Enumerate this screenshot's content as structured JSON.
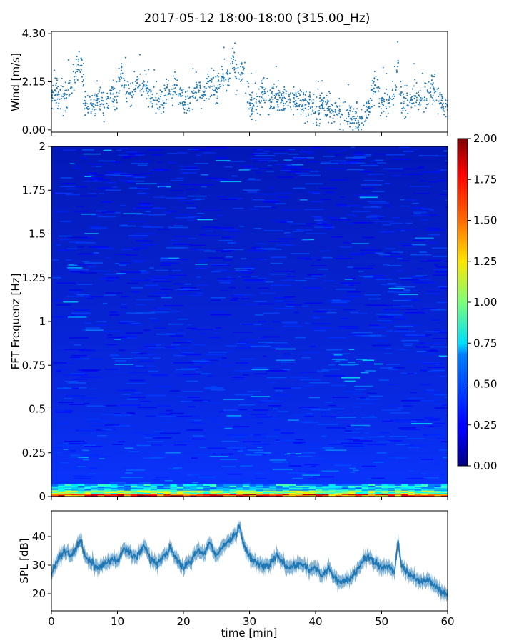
{
  "chart_data": [
    {
      "type": "scatter",
      "ylabel": "Wind [m/s]",
      "xlim": [
        0,
        60
      ],
      "ylim": [
        -0.1,
        4.4
      ],
      "yticks": [
        "0.00",
        "2.15",
        "4.30"
      ],
      "color": "#1f77b4",
      "x": [
        0,
        1,
        2,
        3,
        4,
        4.5,
        5,
        6,
        7,
        8,
        9,
        10,
        10.5,
        11,
        12,
        13,
        14,
        15,
        16,
        17,
        17.5,
        18,
        19,
        20,
        21,
        22,
        23,
        24,
        25,
        26,
        27,
        27.5,
        28,
        29,
        30,
        31,
        32,
        33,
        34,
        35,
        36,
        37,
        38,
        39,
        40,
        41,
        42,
        43,
        44,
        45,
        46,
        47,
        48,
        49,
        50,
        51,
        52,
        52.5,
        53,
        54,
        55,
        56,
        57,
        58,
        59,
        60
      ],
      "y": [
        1.5,
        1.6,
        1.4,
        1.9,
        2.7,
        3.2,
        1.3,
        1.2,
        1.4,
        1.0,
        1.6,
        1.5,
        2.5,
        1.9,
        1.6,
        2.1,
        2.0,
        1.4,
        1.3,
        1.2,
        1.9,
        1.6,
        2.0,
        1.1,
        1.2,
        1.9,
        1.5,
        2.2,
        1.7,
        2.5,
        2.3,
        3.3,
        2.3,
        2.8,
        1.2,
        0.9,
        1.7,
        1.3,
        1.6,
        1.3,
        1.5,
        1.3,
        1.1,
        1.2,
        0.8,
        1.1,
        0.9,
        0.9,
        0.7,
        0.6,
        0.5,
        0.5,
        1.0,
        2.0,
        1.3,
        1.2,
        1.5,
        3.0,
        1.2,
        1.1,
        1.4,
        1.3,
        1.7,
        1.8,
        1.2,
        0.9
      ]
    },
    {
      "type": "heatmap",
      "ylabel": "FFT Frequenz [Hz]",
      "xlim": [
        0,
        60
      ],
      "ylim": [
        0,
        2
      ],
      "yticks": [
        "0",
        "0.25",
        "0.5",
        "0.75",
        "1",
        "1.25",
        "1.5",
        "1.75",
        "2"
      ],
      "colormap": "jet",
      "colorbar": {
        "range": [
          0,
          2
        ],
        "ticks": [
          "0.00",
          "0.25",
          "0.50",
          "0.75",
          "1.00",
          "1.25",
          "1.50",
          "1.75",
          "2.00"
        ]
      }
    },
    {
      "type": "line",
      "ylabel": "SPL [dB]",
      "xlabel": "time [min]",
      "xlim": [
        0,
        60
      ],
      "ylim": [
        14,
        49
      ],
      "yticks": [
        "20",
        "30",
        "40"
      ],
      "xticks": [
        "0",
        "10",
        "20",
        "30",
        "40",
        "50",
        "60"
      ],
      "color": "#1f77b4",
      "x": [
        0,
        1,
        2,
        3,
        4,
        4.5,
        5,
        6,
        7,
        8,
        9,
        10,
        11,
        12,
        13,
        14,
        15,
        16,
        17,
        18,
        19,
        20,
        21,
        22,
        23,
        24,
        25,
        26,
        27,
        28,
        28.5,
        29,
        30,
        31,
        32,
        33,
        34,
        35,
        36,
        37,
        38,
        39,
        40,
        41,
        42,
        43,
        44,
        45,
        46,
        47,
        48,
        49,
        50,
        51,
        52,
        52.5,
        53,
        54,
        55,
        56,
        57,
        58,
        59,
        60
      ],
      "y": [
        27,
        32,
        35,
        33,
        37,
        39,
        33,
        31,
        29,
        30,
        32,
        31,
        36,
        34,
        33,
        37,
        32,
        30,
        33,
        36,
        32,
        29,
        31,
        35,
        34,
        38,
        33,
        37,
        38,
        41,
        44,
        38,
        33,
        31,
        30,
        30,
        34,
        31,
        29,
        30,
        31,
        28,
        29,
        26,
        29,
        25,
        24,
        25,
        27,
        31,
        33,
        31,
        29,
        30,
        28,
        39,
        30,
        27,
        26,
        24,
        25,
        23,
        21,
        19
      ]
    }
  ],
  "title": "2017-05-12 18:00-18:00 (315.00_Hz)"
}
